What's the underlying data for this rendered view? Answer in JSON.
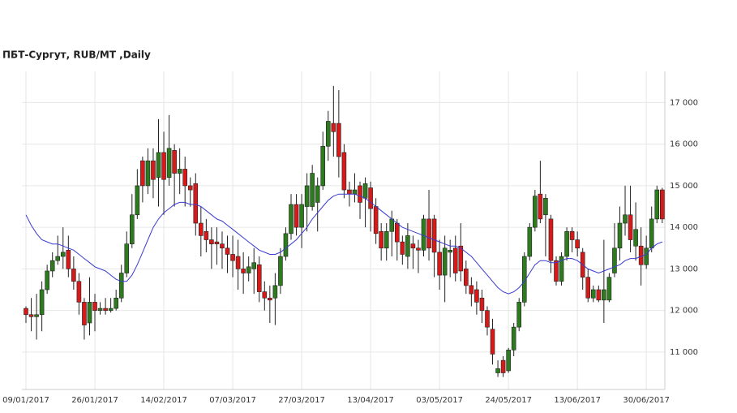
{
  "chart_data": {
    "type": "candlestick",
    "title": "ПБТ-Сургут,  RUB/MT ,Daily",
    "categories": [
      "09/01/2017",
      null,
      null,
      null,
      null,
      null,
      null,
      null,
      null,
      null,
      null,
      null,
      null,
      "26/01/2017",
      null,
      null,
      null,
      null,
      null,
      null,
      null,
      null,
      null,
      null,
      null,
      null,
      "14/02/2017",
      null,
      null,
      null,
      null,
      null,
      null,
      null,
      null,
      null,
      null,
      null,
      null,
      "07/03/2017",
      null,
      null,
      null,
      null,
      null,
      null,
      null,
      null,
      null,
      null,
      null,
      null,
      "27/03/2017",
      null,
      null,
      null,
      null,
      null,
      null,
      null,
      null,
      null,
      null,
      null,
      null,
      "13/04/2017",
      null,
      null,
      null,
      null,
      null,
      null,
      null,
      null,
      null,
      null,
      null,
      null,
      "03/05/2017",
      null,
      null,
      null,
      null,
      null,
      null,
      null,
      null,
      null,
      null,
      null,
      null,
      "24/05/2017",
      null,
      null,
      null,
      null,
      null,
      null,
      null,
      null,
      null,
      null,
      null,
      null,
      "13/06/2017",
      null,
      null,
      null,
      null,
      null,
      null,
      null,
      null,
      null,
      null,
      null,
      null,
      "30/06/2017",
      null,
      null,
      null
    ],
    "open": [
      12050,
      11900,
      11850,
      11900,
      12500,
      12950,
      13200,
      13300,
      13450,
      13000,
      12700,
      12200,
      11700,
      12200,
      12000,
      12050,
      12000,
      12050,
      12300,
      12900,
      13600,
      14300,
      15600,
      15000,
      15600,
      15200,
      15800,
      15200,
      15850,
      15300,
      15400,
      15000,
      15050,
      14100,
      13900,
      13700,
      13650,
      13600,
      13500,
      13350,
      13300,
      13000,
      12900,
      13000,
      13100,
      12450,
      12300,
      12300,
      12600,
      13300,
      13850,
      14550,
      14000,
      14500,
      14500,
      14600,
      15000,
      15950,
      16500,
      16500,
      15800,
      14900,
      14800,
      15000,
      14700,
      14950,
      14500,
      13900,
      13500,
      13900,
      14100,
      13650,
      13300,
      13600,
      13500,
      13450,
      14200,
      14200,
      13400,
      12850,
      13400,
      13500,
      13550,
      13000,
      12600,
      12500,
      12300,
      12000,
      11550,
      10500,
      10800,
      10550,
      11050,
      11600,
      12200,
      13300,
      14000,
      14800,
      14300,
      14200,
      13200,
      12700,
      13300,
      13900,
      13700,
      13400,
      12800,
      12300,
      12500,
      12250,
      12250,
      12900,
      13500,
      14100,
      14300,
      13550,
      13550,
      13100,
      13500,
      14200,
      14900
    ],
    "high": [
      12100,
      12300,
      12400,
      12700,
      13100,
      13400,
      13800,
      14000,
      13800,
      13300,
      12900,
      12300,
      12800,
      12400,
      12200,
      12300,
      12300,
      12500,
      13100,
      13900,
      14800,
      15400,
      15700,
      15900,
      15900,
      16600,
      16300,
      16700,
      16000,
      15900,
      15700,
      15200,
      15300,
      14500,
      14200,
      14000,
      14000,
      13900,
      13800,
      13800,
      13700,
      13400,
      13300,
      13500,
      13300,
      12700,
      12600,
      12900,
      13500,
      14000,
      14800,
      14800,
      14800,
      15300,
      15500,
      15200,
      16300,
      16800,
      17400,
      17300,
      16000,
      15100,
      15300,
      15100,
      15200,
      15100,
      14700,
      14100,
      14100,
      14400,
      14200,
      13800,
      14100,
      13800,
      13700,
      14300,
      14900,
      14300,
      13700,
      13800,
      13700,
      13800,
      14100,
      13200,
      12800,
      12700,
      12500,
      12100,
      11800,
      10800,
      10900,
      11100,
      11700,
      12300,
      13400,
      14100,
      14900,
      15600,
      14800,
      14300,
      13300,
      13400,
      14000,
      14000,
      13900,
      13500,
      13000,
      12600,
      12600,
      13700,
      12900,
      14100,
      14500,
      15000,
      15000,
      14600,
      14000,
      13800,
      14500,
      15000,
      14950
    ],
    "low": [
      11700,
      11500,
      11300,
      11500,
      12400,
      12800,
      13100,
      13000,
      12800,
      12500,
      11900,
      11300,
      11400,
      11500,
      11900,
      11900,
      11950,
      12000,
      12200,
      12800,
      13500,
      14200,
      14600,
      14800,
      14700,
      14500,
      14300,
      15000,
      14500,
      14800,
      14500,
      14500,
      13800,
      13300,
      13400,
      13000,
      13100,
      13000,
      12900,
      12800,
      12500,
      12400,
      12700,
      12400,
      12200,
      12000,
      11700,
      11650,
      12400,
      13200,
      13700,
      13800,
      13500,
      13900,
      14400,
      13900,
      14900,
      15600,
      15700,
      15200,
      14700,
      14500,
      14600,
      14200,
      14000,
      13900,
      13600,
      13200,
      13200,
      13300,
      13200,
      13100,
      13000,
      13000,
      12900,
      13300,
      13200,
      12800,
      12500,
      12200,
      12800,
      12700,
      12700,
      12400,
      12100,
      11900,
      11700,
      11400,
      10700,
      10400,
      10400,
      10500,
      10900,
      11500,
      12100,
      13200,
      13900,
      14100,
      13300,
      12900,
      12600,
      12600,
      13200,
      13400,
      13300,
      12500,
      12200,
      12200,
      12200,
      11700,
      12200,
      12800,
      13200,
      13800,
      13400,
      13200,
      12600,
      13000,
      13400,
      14100,
      14100
    ],
    "close": [
      11900,
      11850,
      11900,
      12500,
      12950,
      13200,
      13300,
      13400,
      13000,
      12700,
      12200,
      11650,
      12200,
      12000,
      12050,
      12000,
      12050,
      12300,
      12900,
      13600,
      14300,
      15000,
      15000,
      15600,
      15150,
      15800,
      15150,
      15900,
      15300,
      15400,
      15000,
      14900,
      14100,
      13800,
      13700,
      13600,
      13600,
      13500,
      13350,
      13200,
      13000,
      12900,
      13050,
      13150,
      12450,
      12300,
      12250,
      12600,
      13300,
      13850,
      14550,
      14000,
      14550,
      15000,
      15300,
      15000,
      15950,
      16550,
      16300,
      15700,
      14900,
      14800,
      14900,
      14600,
      15050,
      14450,
      13850,
      13500,
      13900,
      14200,
      13650,
      13350,
      13800,
      13500,
      13450,
      14200,
      13500,
      13400,
      12850,
      13500,
      13450,
      12900,
      12950,
      12600,
      12400,
      12200,
      12000,
      11600,
      10950,
      10600,
      10500,
      11050,
      11600,
      12200,
      13300,
      14000,
      14750,
      14200,
      14700,
      13200,
      12700,
      13300,
      13900,
      13700,
      13500,
      12800,
      12300,
      12500,
      12250,
      12500,
      12800,
      13500,
      14100,
      14300,
      13700,
      13950,
      13100,
      13500,
      14200,
      14900,
      14200
    ],
    "up_color": "#2d7a1f",
    "down_color": "#d61a1a",
    "ma": {
      "color": "#3a3ad0",
      "values": [
        14300,
        14050,
        13850,
        13700,
        13650,
        13600,
        13600,
        13550,
        13500,
        13450,
        13350,
        13250,
        13150,
        13050,
        13000,
        12950,
        12850,
        12750,
        12700,
        12700,
        12850,
        13100,
        13400,
        13700,
        14000,
        14200,
        14350,
        14450,
        14550,
        14600,
        14600,
        14550,
        14550,
        14500,
        14400,
        14300,
        14200,
        14150,
        14050,
        13950,
        13850,
        13750,
        13650,
        13550,
        13450,
        13400,
        13350,
        13350,
        13400,
        13500,
        13600,
        13700,
        13850,
        14000,
        14200,
        14350,
        14500,
        14650,
        14750,
        14800,
        14800,
        14800,
        14800,
        14750,
        14700,
        14600,
        14500,
        14400,
        14300,
        14200,
        14100,
        14000,
        13950,
        13900,
        13850,
        13800,
        13750,
        13700,
        13650,
        13600,
        13550,
        13550,
        13500,
        13400,
        13300,
        13150,
        13000,
        12850,
        12700,
        12550,
        12450,
        12400,
        12450,
        12550,
        12700,
        12900,
        13100,
        13200,
        13200,
        13150,
        13150,
        13200,
        13250,
        13250,
        13200,
        13100,
        13000,
        12950,
        12900,
        12950,
        13000,
        13050,
        13100,
        13200,
        13250,
        13250,
        13300,
        13350,
        13500,
        13600,
        13650
      ]
    },
    "ylim": [
      10100,
      17750
    ],
    "yticks": [
      {
        "value": 11000,
        "label": "11 000"
      },
      {
        "value": 12000,
        "label": "12 000"
      },
      {
        "value": 13000,
        "label": "13 000"
      },
      {
        "value": 14000,
        "label": "14 000"
      },
      {
        "value": 15000,
        "label": "15 000"
      },
      {
        "value": 16000,
        "label": "16 000"
      },
      {
        "value": 17000,
        "label": "17 000"
      }
    ],
    "grid": true
  }
}
